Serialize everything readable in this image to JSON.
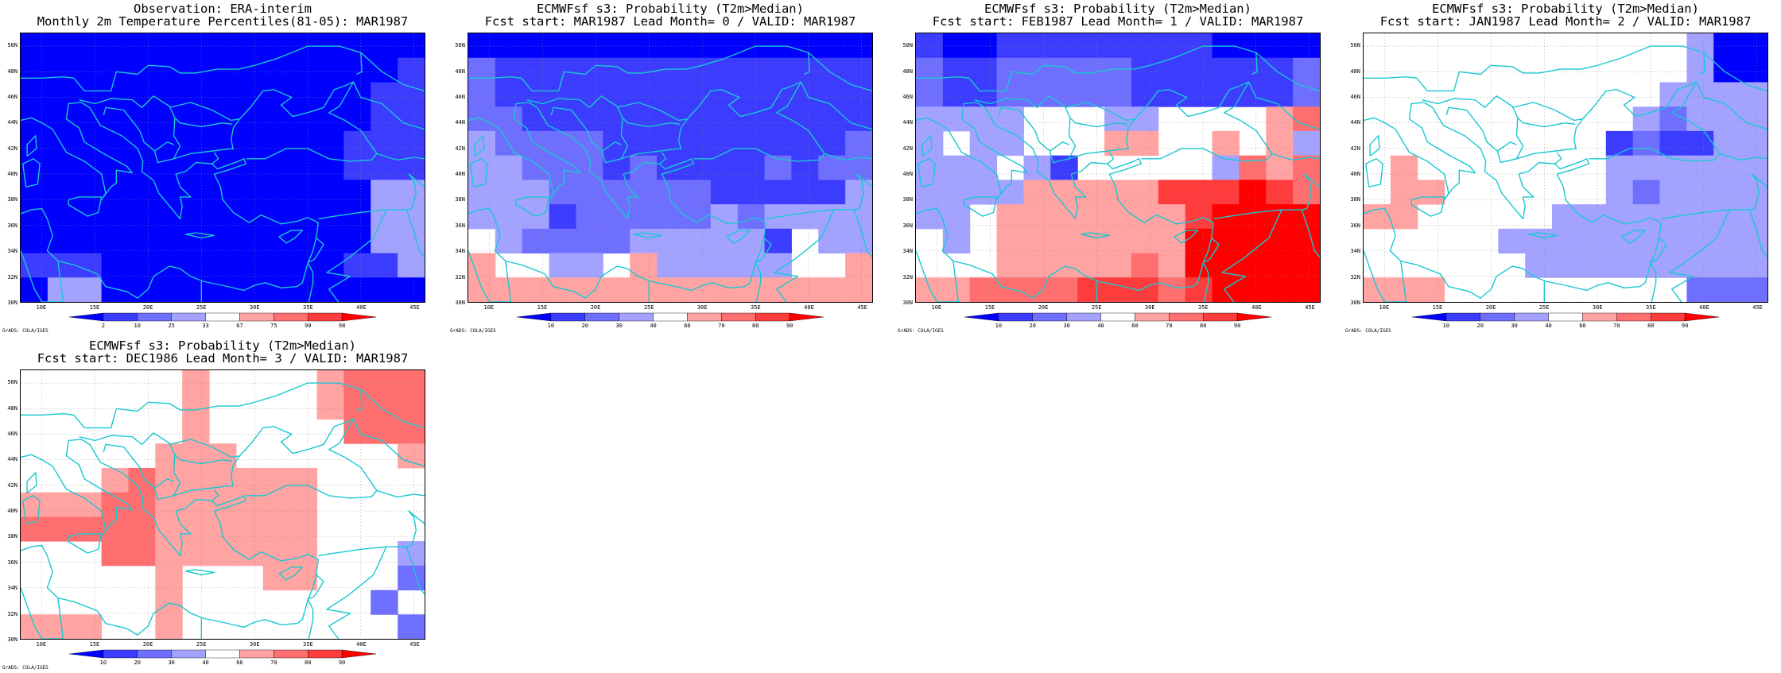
{
  "lon_labels": [
    "10E",
    "15E",
    "20E",
    "25E",
    "30E",
    "35E",
    "40E",
    "45E"
  ],
  "lat_labels": [
    "30N",
    "32N",
    "34N",
    "36N",
    "38N",
    "40N",
    "42N",
    "44N",
    "46N",
    "48N",
    "50N"
  ],
  "credit": "GrADS: COLA/IGES",
  "colorbar_obs": {
    "labels": [
      "2",
      "10",
      "25",
      "33",
      "67",
      "75",
      "90",
      "98"
    ],
    "colors": [
      "#0000ff",
      "#3c3cff",
      "#6f6fff",
      "#a3a3ff",
      "#ffffff",
      "#ffa3a3",
      "#ff6f6f",
      "#ff3c3c",
      "#ff0000"
    ]
  },
  "colorbar_prob": {
    "labels": [
      "10",
      "20",
      "30",
      "40",
      "60",
      "70",
      "80",
      "90"
    ],
    "colors": [
      "#0000ff",
      "#3c3cff",
      "#6f6fff",
      "#a3a3ff",
      "#ffffff",
      "#ffa3a3",
      "#ff6f6f",
      "#ff3c3c",
      "#ff0000"
    ]
  },
  "panels": [
    {
      "title1": "Observation: ERA-interim",
      "title2": "Monthly 2m Temperature Percentiles(81-05): MAR1987",
      "colorbar": "obs",
      "grid_rows_top_to_bottom": [
        "000000000000000",
        "000000000000001",
        "000000000000011",
        "000000000000011",
        "000000000000111",
        "000000000000111",
        "000000000000033",
        "000000000000033",
        "000000000000033",
        "111000000000113",
        "033000000000000"
      ]
    },
    {
      "title1": "ECMWFsf s3: Probability (T2m>Median)",
      "title2": "Fcst start: MAR1987  Lead Month= 0 / VALID: MAR1987",
      "colorbar": "prob",
      "grid_rows_top_to_bottom": [
        "000000000000000",
        "211111111111111",
        "211111111111111",
        "221111111111111",
        "322221111111112",
        "332221211112122",
        "333222222111113",
        "333122222323333",
        "432222333331433",
        "544334533333445",
        "555555555555555"
      ]
    },
    {
      "title1": "ECMWFsf s3: Probability (T2m>Median)",
      "title2": "Fcst start: FEB1987  Lead Month= 1 / VALID: MAR1987",
      "colorbar": "prob",
      "grid_rows_top_to_bottom": [
        "100111111110000",
        "211222221111112",
        "211222221111112",
        "333344433444456",
        "343344455445453",
        "333431444443656",
        "333355555777876",
        "334555555578888",
        "434555555588888",
        "444555556588888",
        "556666777678888"
      ]
    },
    {
      "title1": "ECMWFsf s3: Probability (T2m>Median)",
      "title2": "Fcst start: JAN1987  Lead Month= 2 / VALID: MAR1987",
      "colorbar": "prob",
      "grid_rows_top_to_bottom": [
        "444444444444300",
        "444444444444300",
        "444444444443333",
        "444444444432333",
        "444444444121133",
        "454444444333333",
        "455444444323333",
        "554444433333333",
        "444443333333333",
        "444444333333333",
        "555444444444222"
      ]
    },
    {
      "title1": "ECMWFsf s3: Probability (T2m>Median)",
      "title2": "Fcst start: DEC1986  Lead Month= 3 / VALID: MAR1987",
      "colorbar": "prob",
      "grid_rows_top_to_bottom": [
        "444444544445666",
        "444444544445666",
        "444444544444666",
        "444445554444445",
        "444565555554444",
        "555665555554444",
        "666665555554444",
        "444665555554443",
        "444445444554442",
        "444445444444424",
        "555445444444442"
      ]
    }
  ]
}
